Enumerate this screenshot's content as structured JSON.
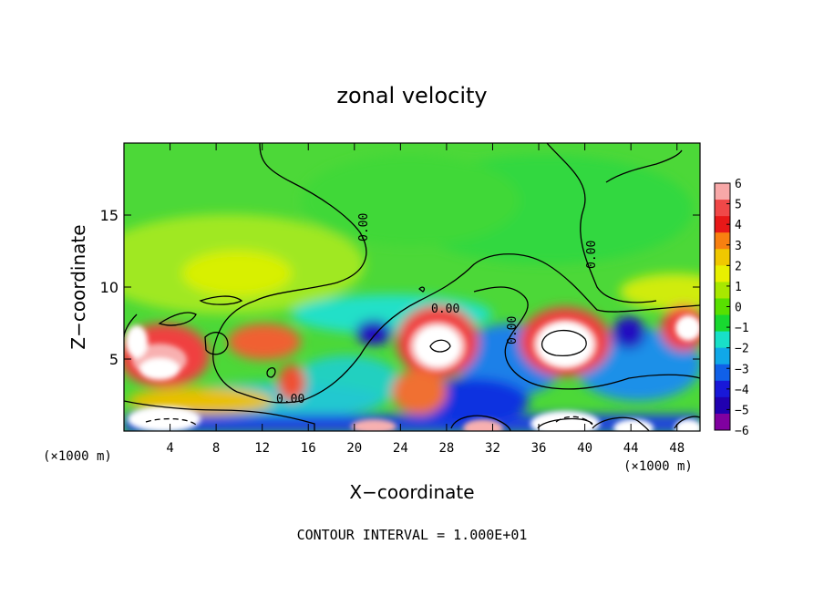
{
  "chart_data": {
    "type": "heatmap",
    "title": "zonal velocity",
    "xlabel": "X−coordinate",
    "ylabel": "Z−coordinate",
    "x_unit_left": "(×1000 m)",
    "x_unit_right": "(×1000 m)",
    "xlim": [
      0,
      50
    ],
    "ylim": [
      0,
      20
    ],
    "xticks": [
      4,
      8,
      12,
      16,
      20,
      24,
      28,
      32,
      36,
      40,
      44,
      48
    ],
    "yticks": [
      5,
      10,
      15
    ],
    "colorbar": {
      "ticks": [
        6,
        5,
        4,
        3,
        2,
        1,
        0,
        -1,
        -2,
        -3,
        -4,
        -5,
        -6
      ],
      "colors": [
        "#f8a8a8",
        "#f04848",
        "#e81818",
        "#f88010",
        "#f0c800",
        "#e8f000",
        "#a8e800",
        "#58e000",
        "#18d830",
        "#18e0c8",
        "#10a8e8",
        "#1060e8",
        "#1818d8",
        "#2000b0",
        "#8000a0"
      ]
    },
    "contour_label": "0.00",
    "footer": "CONTOUR INTERVAL = 1.000E+01"
  }
}
